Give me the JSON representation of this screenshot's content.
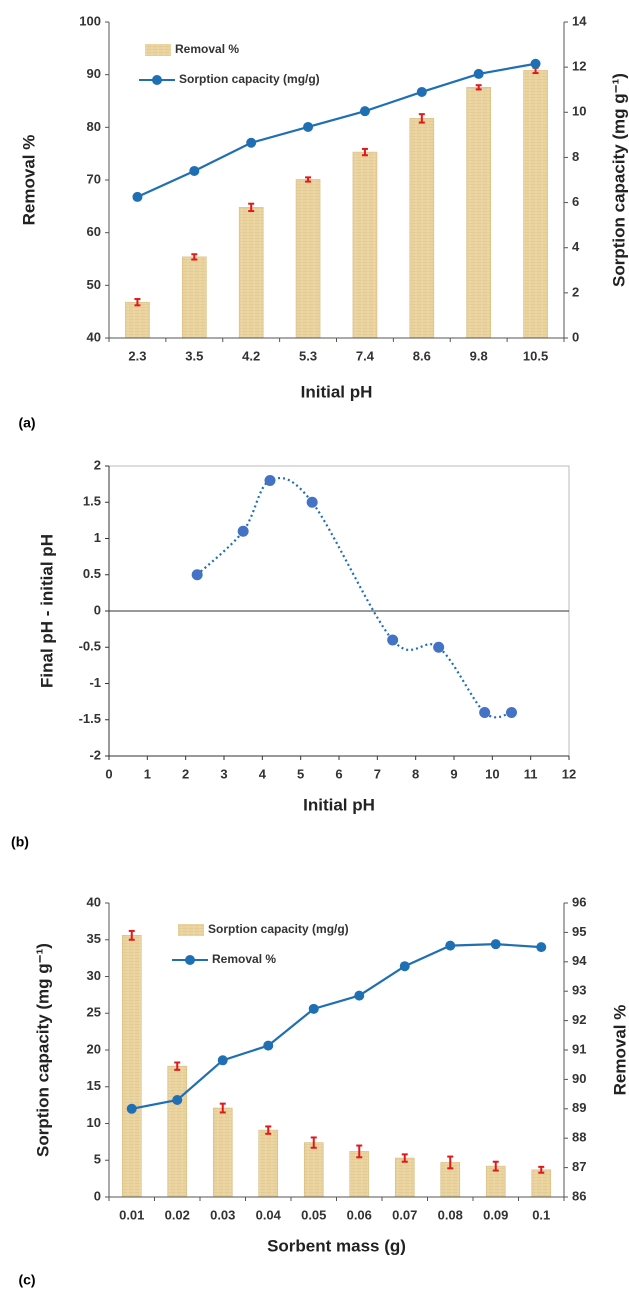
{
  "colors": {
    "line": "#1f6fb4",
    "point_b": "#4472c4",
    "bar_fill": "#e8cf9a",
    "bar_stroke": "#d9bc80",
    "error": "#e0191b",
    "axis": "#000000"
  },
  "chart_data": [
    {
      "id": "a",
      "panel_label": "(a)",
      "type": "bar",
      "categories": [
        "2.3",
        "3.5",
        "4.2",
        "5.3",
        "7.4",
        "8.6",
        "9.8",
        "10.5"
      ],
      "xlabel": "Initial pH",
      "ylabel": "Removal %",
      "y2label": "Sorption capacity (mg g⁻¹)",
      "ylim": [
        40,
        100
      ],
      "yticks": [
        "40",
        "50",
        "60",
        "70",
        "80",
        "90",
        "100"
      ],
      "y2lim": [
        0,
        14
      ],
      "y2ticks": [
        "0",
        "2",
        "4",
        "6",
        "8",
        "10",
        "12",
        "14"
      ],
      "legend_position": "top-left",
      "series": [
        {
          "name": "Removal %",
          "kind": "bar",
          "axis": "left",
          "values": [
            46.8,
            55.4,
            64.8,
            70.1,
            75.3,
            81.7,
            87.6,
            90.8
          ],
          "errors": [
            0.6,
            0.5,
            0.7,
            0.4,
            0.6,
            0.8,
            0.4,
            0.5
          ]
        },
        {
          "name": "Sorption capacity (mg/g)",
          "kind": "line",
          "axis": "right",
          "values": [
            6.25,
            7.4,
            8.65,
            9.35,
            10.05,
            10.9,
            11.7,
            12.15
          ]
        }
      ]
    },
    {
      "id": "b",
      "panel_label": "(b)",
      "type": "scatter",
      "xlabel": "Initial pH",
      "ylabel": "Final pH - initial pH",
      "xlim": [
        0,
        12
      ],
      "xticks": [
        "0",
        "1",
        "2",
        "3",
        "4",
        "5",
        "6",
        "7",
        "8",
        "9",
        "10",
        "11",
        "12"
      ],
      "ylim": [
        -2,
        2
      ],
      "yticks": [
        "-2",
        "-1.5",
        "-1",
        "-0.5",
        "0",
        "0.5",
        "1",
        "1.5",
        "2"
      ],
      "series": [
        {
          "x": [
            2.3,
            3.5,
            4.2,
            5.3,
            7.4,
            8.6,
            9.8,
            10.5
          ],
          "y": [
            0.5,
            1.1,
            1.8,
            1.5,
            -0.4,
            -0.5,
            -1.4,
            -1.4
          ]
        }
      ]
    },
    {
      "id": "c",
      "panel_label": "(c)",
      "type": "bar",
      "categories": [
        "0.01",
        "0.02",
        "0.03",
        "0.04",
        "0.05",
        "0.06",
        "0.07",
        "0.08",
        "0.09",
        "0.1"
      ],
      "xlabel": "Sorbent mass (g)",
      "ylabel": "Sorption capacity (mg g⁻¹)",
      "y2label": "Removal %",
      "ylim": [
        0,
        40
      ],
      "yticks": [
        "0",
        "5",
        "10",
        "15",
        "20",
        "25",
        "30",
        "35",
        "40"
      ],
      "y2lim": [
        86,
        96
      ],
      "y2ticks": [
        "86",
        "87",
        "88",
        "89",
        "90",
        "91",
        "92",
        "93",
        "94",
        "95",
        "96"
      ],
      "legend_position": "top-left",
      "series": [
        {
          "name": "Sorption capacity (mg/g)",
          "kind": "bar",
          "axis": "left",
          "values": [
            35.6,
            17.8,
            12.1,
            9.1,
            7.4,
            6.2,
            5.3,
            4.7,
            4.2,
            3.7
          ],
          "errors": [
            0.6,
            0.5,
            0.6,
            0.5,
            0.7,
            0.8,
            0.5,
            0.8,
            0.6,
            0.4
          ]
        },
        {
          "name": "Removal %",
          "kind": "line",
          "axis": "right",
          "values": [
            89.0,
            89.3,
            90.65,
            91.15,
            92.4,
            92.85,
            93.85,
            94.55,
            94.6,
            94.5
          ]
        }
      ]
    }
  ]
}
